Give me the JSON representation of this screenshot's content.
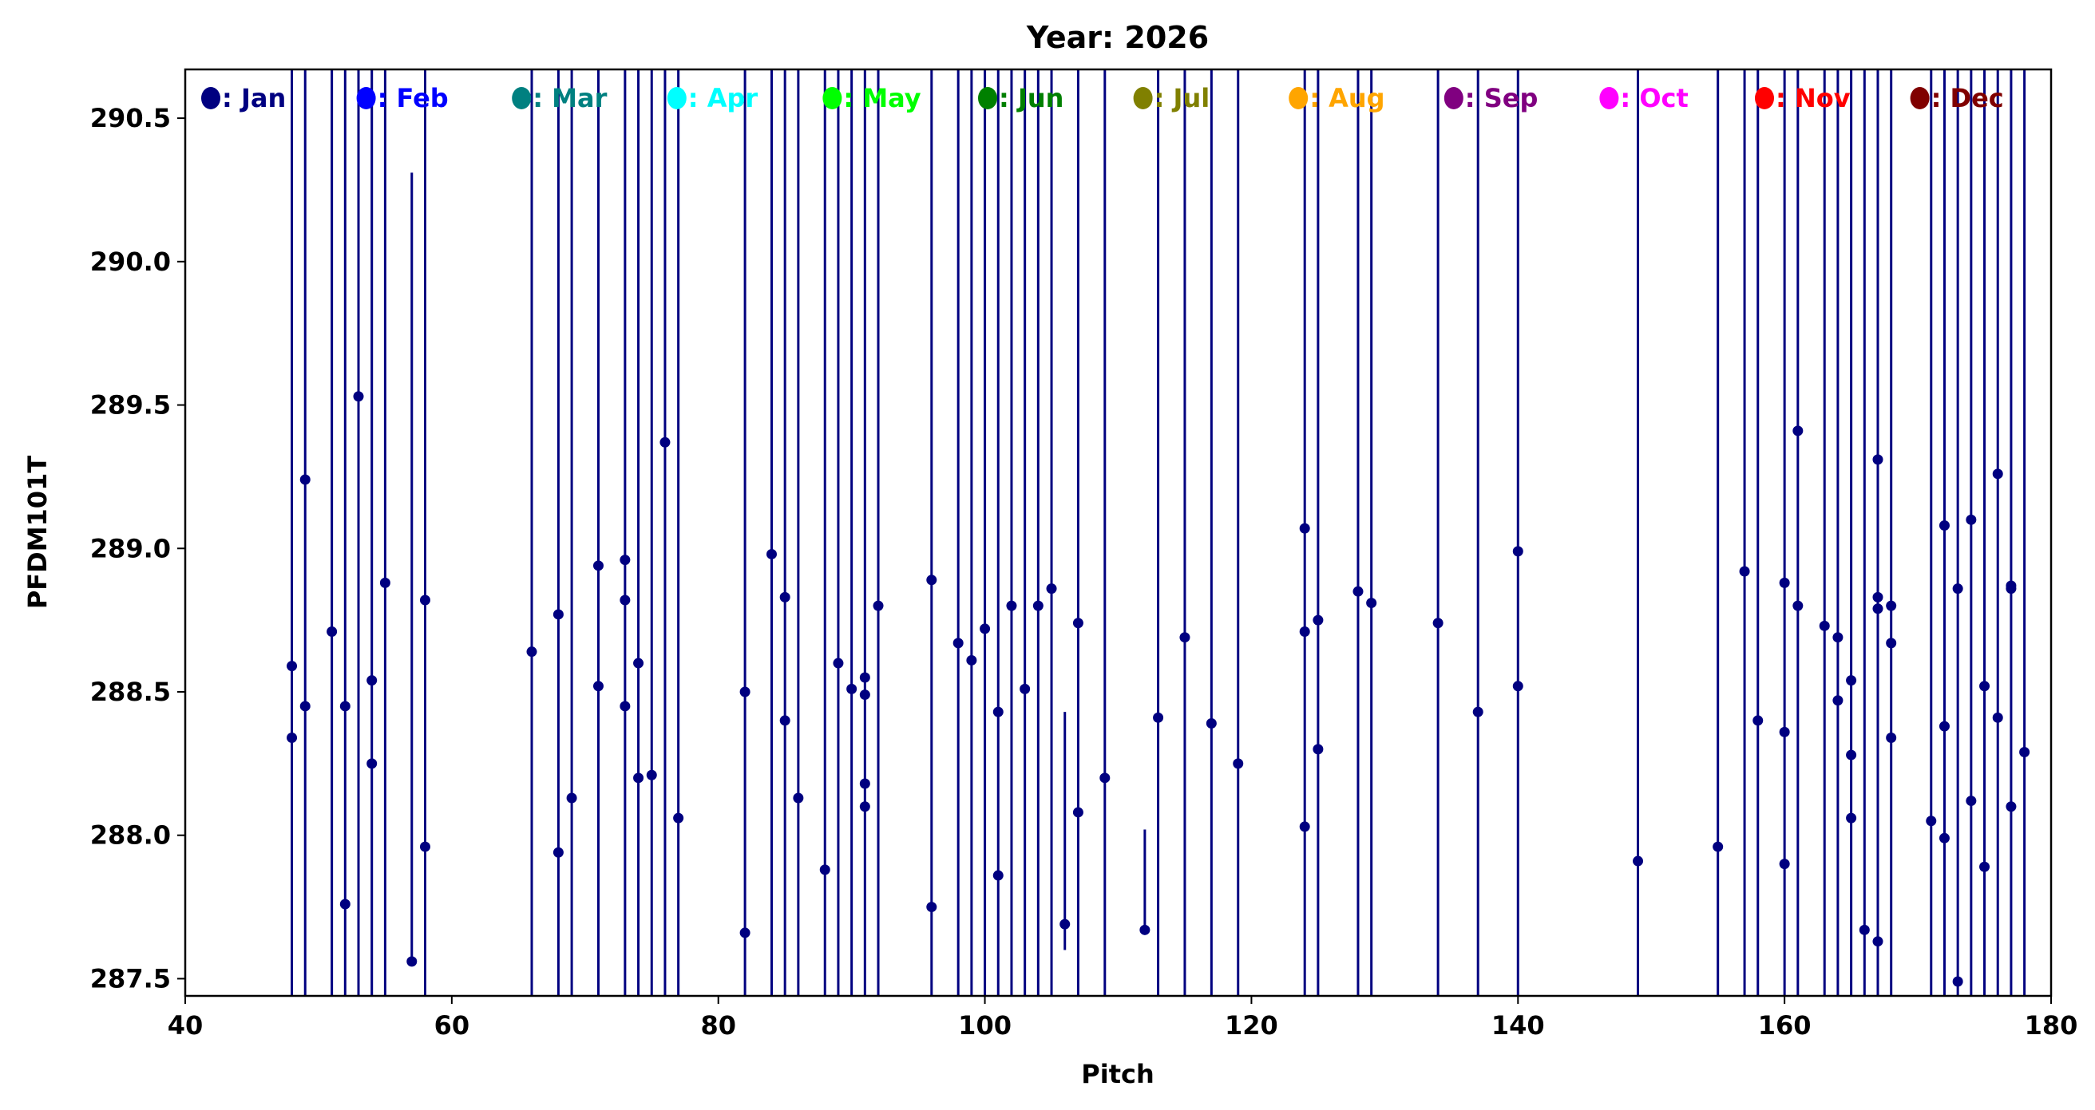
{
  "chart_data": {
    "type": "scatter",
    "title": "Year: 2026",
    "xlabel": "Pitch",
    "ylabel": "PFDM101T",
    "xlim": [
      40,
      180
    ],
    "ylim": [
      287.44,
      290.67
    ],
    "xticks": [
      40,
      60,
      80,
      100,
      120,
      140,
      160,
      180
    ],
    "yticks": [
      287.5,
      288.0,
      288.5,
      289.0,
      289.5,
      290.0,
      290.5
    ],
    "ytick_labels": [
      "287.5",
      "288.0",
      "288.5",
      "289.0",
      "289.5",
      "290.0",
      "290.5"
    ],
    "grid": false,
    "legend_placement": "top",
    "legend": [
      {
        "label": ": Jan",
        "color": "#000080"
      },
      {
        "label": ": Feb",
        "color": "#0000ff"
      },
      {
        "label": ": Mar",
        "color": "#008080"
      },
      {
        "label": ": Apr",
        "color": "#00ffff"
      },
      {
        "label": ": May",
        "color": "#00ff00"
      },
      {
        "label": ": Jun",
        "color": "#008000"
      },
      {
        "label": ": Jul",
        "color": "#808000"
      },
      {
        "label": ": Aug",
        "color": "#ffa500"
      },
      {
        "label": ": Sep",
        "color": "#800080"
      },
      {
        "label": ": Oct",
        "color": "#ff00ff"
      },
      {
        "label": ": Nov",
        "color": "#ff0000"
      },
      {
        "label": ": Dec",
        "color": "#800000"
      }
    ],
    "series": [
      {
        "name": "Jan",
        "color": "#000080",
        "full_height_lines_at_pitch": [
          48,
          49,
          51,
          52,
          53,
          54,
          55,
          58,
          66,
          68,
          69,
          71,
          73,
          74,
          75,
          76,
          77,
          82,
          84,
          85,
          86,
          88,
          89,
          90,
          91,
          92,
          96,
          98,
          99,
          100,
          101,
          102,
          103,
          104,
          105,
          107,
          109,
          113,
          115,
          117,
          119,
          124,
          125,
          128,
          129,
          134,
          137,
          140,
          149,
          155,
          157,
          158,
          160,
          161,
          163,
          164,
          165,
          166,
          167,
          168,
          171,
          172,
          173,
          174,
          175,
          176,
          177,
          178
        ],
        "partial_lines": [
          [
            57,
            287.56,
            290.31
          ],
          [
            106,
            287.6,
            288.43
          ],
          [
            112,
            287.66,
            288.02
          ]
        ],
        "points": [
          [
            48,
            288.59
          ],
          [
            48,
            288.34
          ],
          [
            49,
            289.24
          ],
          [
            49,
            288.45
          ],
          [
            51,
            288.71
          ],
          [
            52,
            288.45
          ],
          [
            52,
            287.76
          ],
          [
            53,
            289.53
          ],
          [
            54,
            288.54
          ],
          [
            54,
            288.25
          ],
          [
            55,
            288.88
          ],
          [
            57,
            287.56
          ],
          [
            58,
            288.82
          ],
          [
            58,
            287.96
          ],
          [
            66,
            288.64
          ],
          [
            68,
            288.77
          ],
          [
            68,
            287.94
          ],
          [
            69,
            288.13
          ],
          [
            71,
            288.94
          ],
          [
            71,
            288.52
          ],
          [
            73,
            288.96
          ],
          [
            73,
            288.82
          ],
          [
            73,
            288.45
          ],
          [
            74,
            288.6
          ],
          [
            74,
            288.2
          ],
          [
            75,
            288.21
          ],
          [
            76,
            289.37
          ],
          [
            77,
            288.06
          ],
          [
            82,
            288.5
          ],
          [
            82,
            287.66
          ],
          [
            84,
            288.98
          ],
          [
            85,
            288.83
          ],
          [
            85,
            288.4
          ],
          [
            86,
            288.13
          ],
          [
            88,
            287.88
          ],
          [
            89,
            288.6
          ],
          [
            90,
            288.51
          ],
          [
            91,
            288.55
          ],
          [
            91,
            288.49
          ],
          [
            91,
            288.18
          ],
          [
            91,
            288.1
          ],
          [
            92,
            288.8
          ],
          [
            96,
            288.89
          ],
          [
            96,
            287.75
          ],
          [
            98,
            288.67
          ],
          [
            99,
            288.61
          ],
          [
            100,
            288.72
          ],
          [
            101,
            288.43
          ],
          [
            101,
            287.86
          ],
          [
            102,
            288.8
          ],
          [
            103,
            288.51
          ],
          [
            104,
            288.8
          ],
          [
            105,
            288.86
          ],
          [
            106,
            287.69
          ],
          [
            107,
            288.74
          ],
          [
            107,
            288.08
          ],
          [
            109,
            288.2
          ],
          [
            112,
            287.67
          ],
          [
            113,
            288.41
          ],
          [
            115,
            288.69
          ],
          [
            117,
            288.39
          ],
          [
            119,
            288.25
          ],
          [
            124,
            289.07
          ],
          [
            124,
            288.71
          ],
          [
            124,
            288.03
          ],
          [
            125,
            288.75
          ],
          [
            125,
            288.3
          ],
          [
            128,
            288.85
          ],
          [
            129,
            288.81
          ],
          [
            134,
            288.74
          ],
          [
            137,
            288.43
          ],
          [
            140,
            288.99
          ],
          [
            140,
            288.52
          ],
          [
            149,
            287.91
          ],
          [
            155,
            287.96
          ],
          [
            157,
            288.92
          ],
          [
            158,
            288.4
          ],
          [
            160,
            288.88
          ],
          [
            160,
            288.36
          ],
          [
            160,
            287.9
          ],
          [
            161,
            289.41
          ],
          [
            161,
            288.8
          ],
          [
            163,
            288.73
          ],
          [
            164,
            288.69
          ],
          [
            164,
            288.47
          ],
          [
            165,
            288.54
          ],
          [
            165,
            288.28
          ],
          [
            165,
            288.06
          ],
          [
            166,
            287.67
          ],
          [
            167,
            289.31
          ],
          [
            167,
            288.83
          ],
          [
            167,
            288.79
          ],
          [
            167,
            287.63
          ],
          [
            168,
            288.8
          ],
          [
            168,
            288.67
          ],
          [
            168,
            288.34
          ],
          [
            171,
            288.05
          ],
          [
            172,
            289.08
          ],
          [
            172,
            288.38
          ],
          [
            172,
            287.99
          ],
          [
            173,
            288.86
          ],
          [
            173,
            287.49
          ],
          [
            174,
            289.1
          ],
          [
            174,
            288.12
          ],
          [
            175,
            288.52
          ],
          [
            175,
            287.89
          ],
          [
            176,
            289.26
          ],
          [
            176,
            288.41
          ],
          [
            177,
            288.87
          ],
          [
            177,
            288.86
          ],
          [
            177,
            288.1
          ],
          [
            178,
            288.29
          ]
        ]
      }
    ]
  }
}
